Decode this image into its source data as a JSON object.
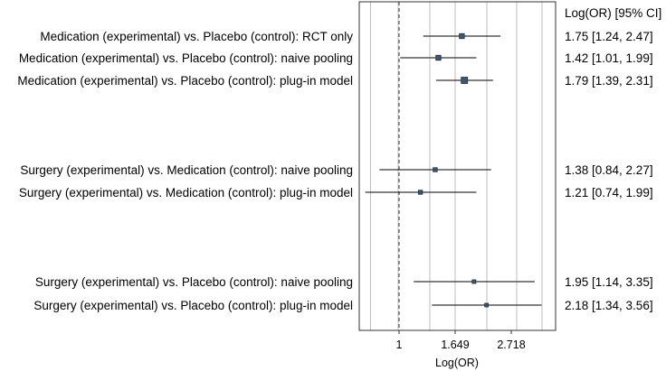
{
  "chart_data": {
    "type": "forest",
    "xlabel": "Log(OR)",
    "right_column_header": "Log(OR) [95% CI]",
    "x_tick_labels": [
      "1",
      "1.649",
      "2.718"
    ],
    "reference_line": 1,
    "grid": true,
    "rows": [
      {
        "label": "Medication (experimental) vs. Placebo (control): RCT only",
        "estimate": 1.75,
        "lower": 1.24,
        "upper": 2.47,
        "text": "1.75 [1.24, 2.47]",
        "group": 1
      },
      {
        "label": "Medication (experimental) vs. Placebo (control): naive pooling",
        "estimate": 1.42,
        "lower": 1.01,
        "upper": 1.99,
        "text": "1.42 [1.01, 1.99]",
        "group": 1
      },
      {
        "label": "Medication (experimental) vs. Placebo (control): plug-in model",
        "estimate": 1.79,
        "lower": 1.39,
        "upper": 2.31,
        "text": "1.79 [1.39, 2.31]",
        "group": 1
      },
      {
        "label": "Surgery (experimental) vs. Medication (control): naive pooling",
        "estimate": 1.38,
        "lower": 0.84,
        "upper": 2.27,
        "text": "1.38 [0.84, 2.27]",
        "group": 2
      },
      {
        "label": "Surgery (experimental) vs. Medication (control): plug-in model",
        "estimate": 1.21,
        "lower": 0.74,
        "upper": 1.99,
        "text": "1.21 [0.74, 1.99]",
        "group": 2
      },
      {
        "label": "Surgery (experimental) vs. Placebo (control): naive pooling",
        "estimate": 1.95,
        "lower": 1.14,
        "upper": 3.35,
        "text": "1.95 [1.14, 3.35]",
        "group": 3
      },
      {
        "label": "Surgery (experimental) vs. Placebo (control): plug-in model",
        "estimate": 2.18,
        "lower": 1.34,
        "upper": 3.56,
        "text": "2.18 [1.34, 3.56]",
        "group": 3
      }
    ],
    "colors": {
      "marker_fill": "#44546a",
      "marker_stroke": "#1f2d44",
      "grid": "#bfbfbf",
      "reference_line": "#555555",
      "ci_line": "#000000"
    }
  }
}
